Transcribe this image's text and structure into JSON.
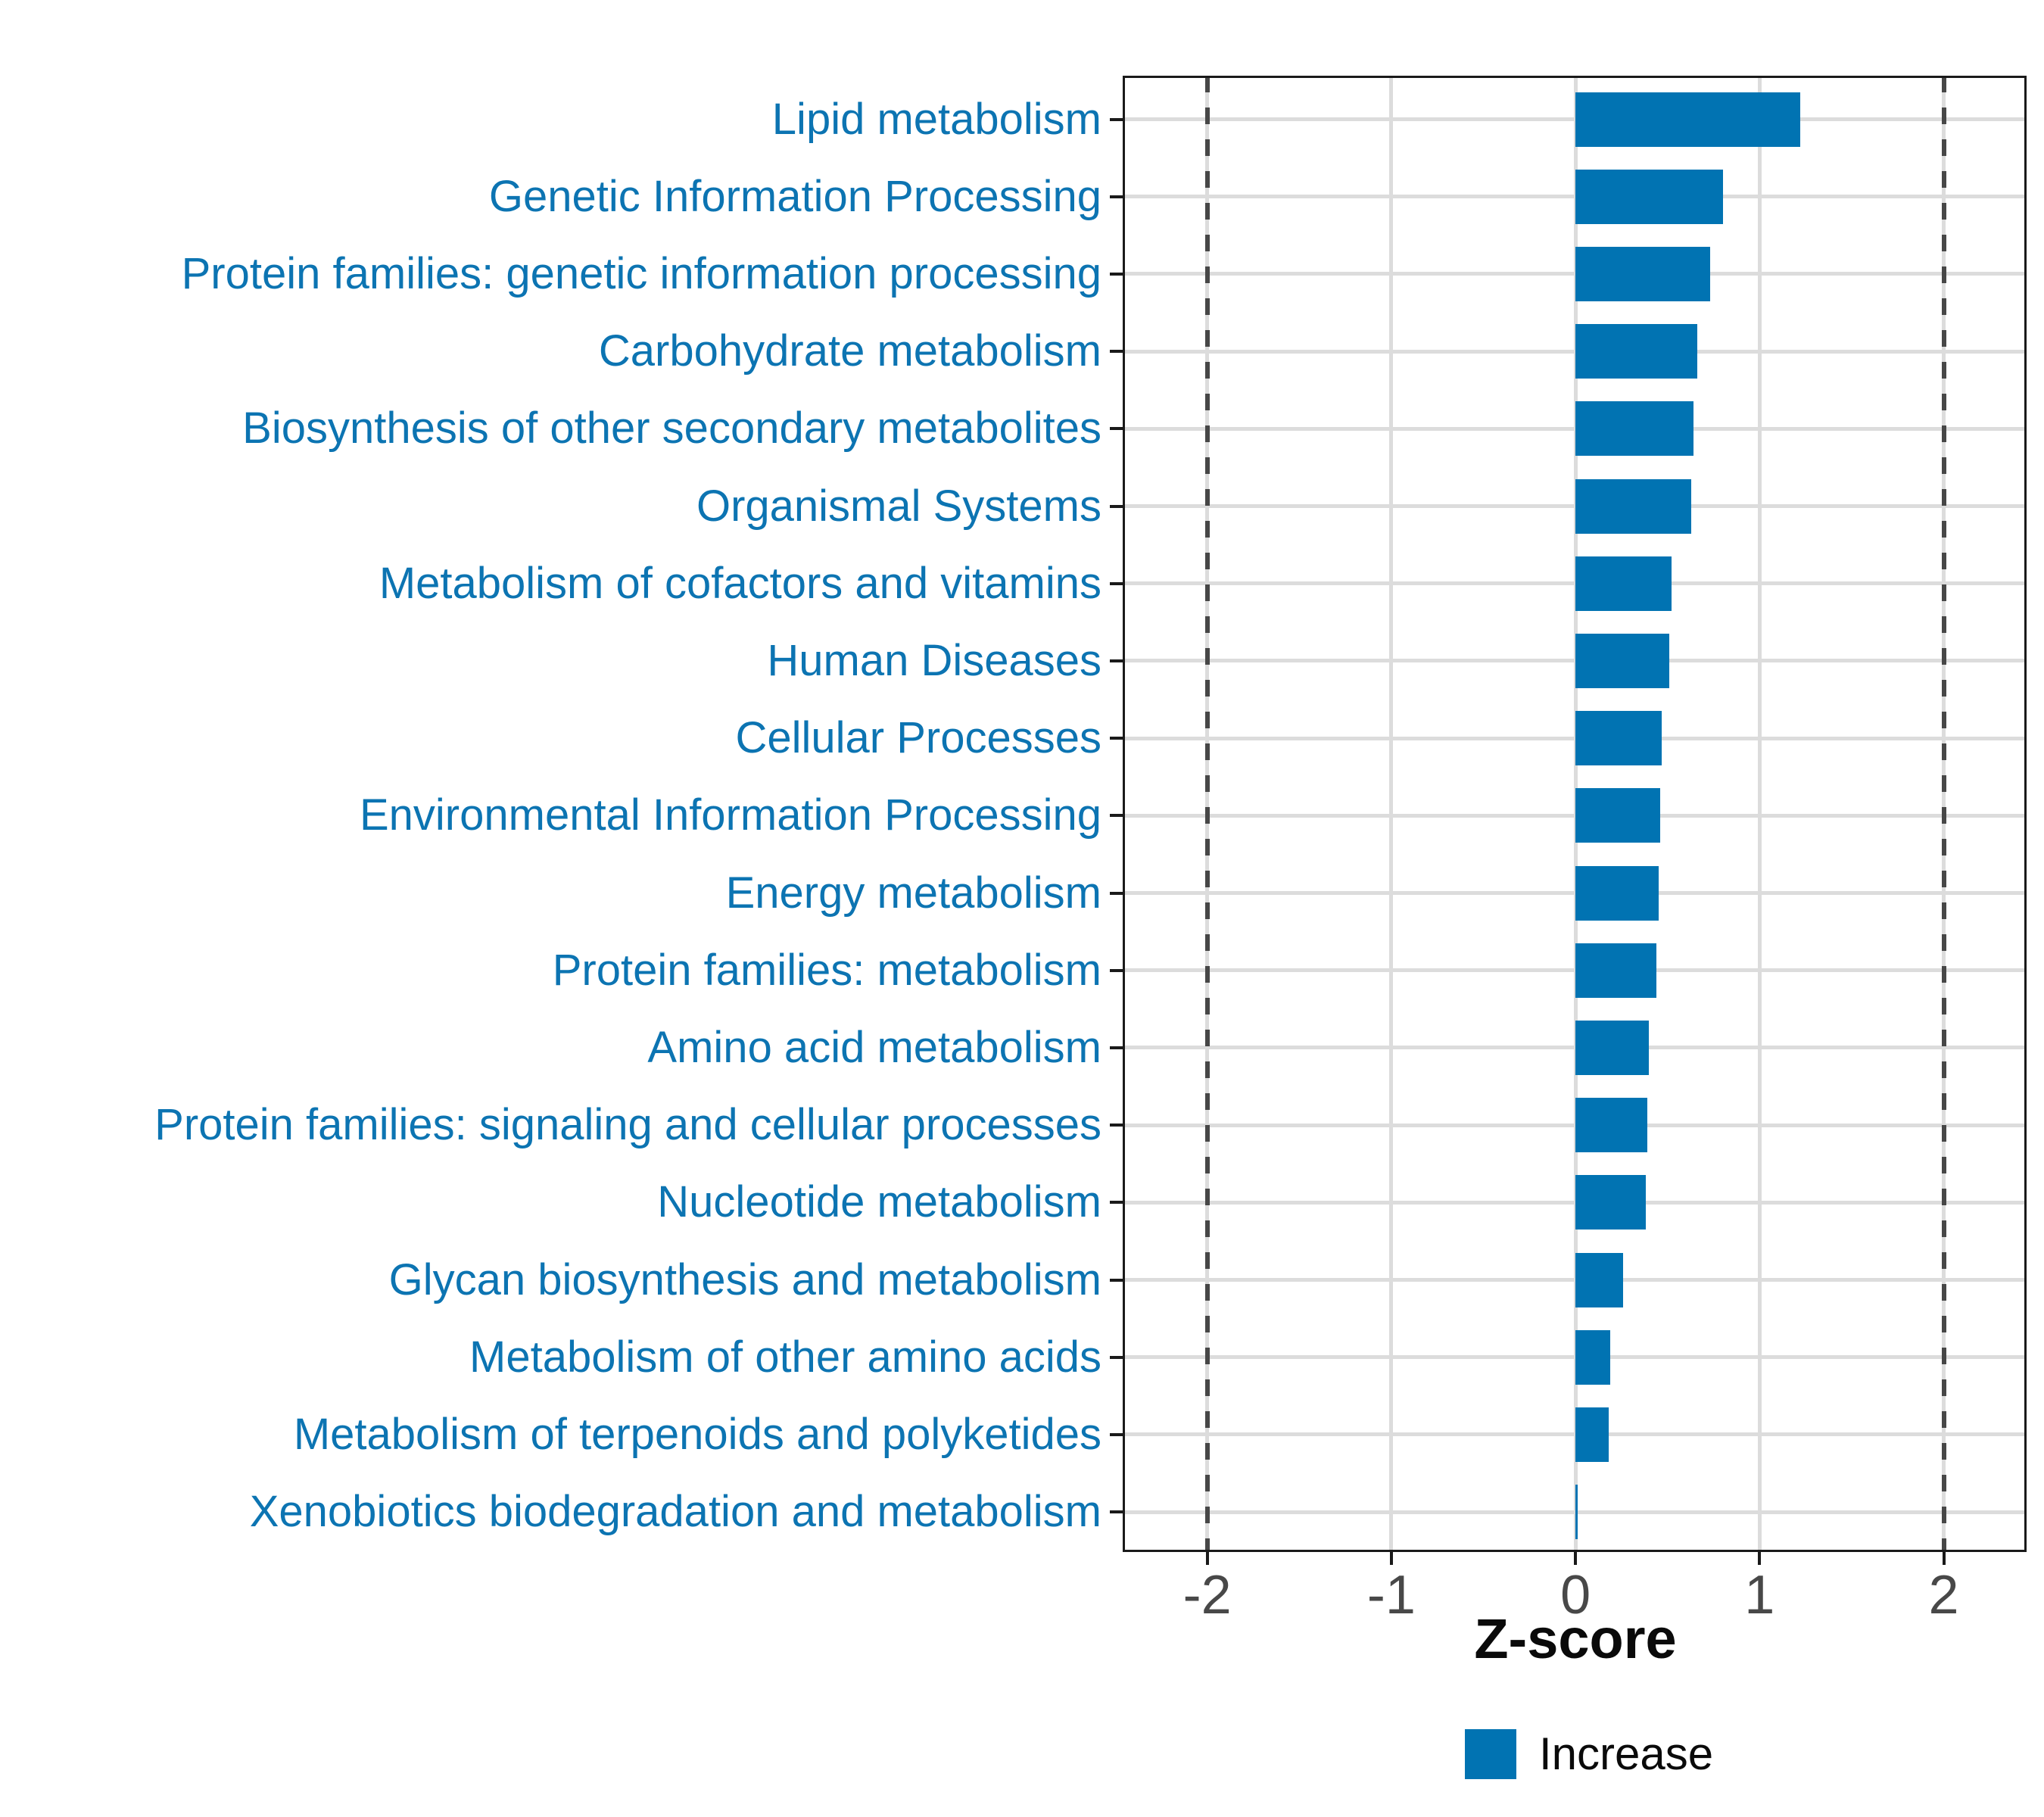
{
  "figure": {
    "background": "#FFFFFF",
    "bar_color": "#0173B2",
    "category_label_color": "#0C74B2",
    "tick_label_color": "#484848",
    "grid_color": "#DCDCDC",
    "dashed_line_color": "#474747",
    "panel_border_color": "#1A1A1A"
  },
  "chart_data": {
    "type": "bar",
    "orientation": "horizontal",
    "title": "",
    "xlabel": "Z-score",
    "ylabel": "",
    "xlim": [
      -2.46,
      2.45
    ],
    "x_ticks": [
      -2,
      -1,
      0,
      1,
      2
    ],
    "x_tick_labels": [
      "-2",
      "-1",
      "0",
      "1",
      "2"
    ],
    "grid": true,
    "reference_lines_dashed": [
      -2,
      2
    ],
    "series_name": "Increase",
    "categories": [
      "Lipid metabolism",
      "Genetic Information Processing",
      "Protein families: genetic information processing",
      "Carbohydrate metabolism",
      "Biosynthesis of other secondary metabolites",
      "Organismal Systems",
      "Metabolism of cofactors and vitamins",
      "Human Diseases",
      "Cellular Processes",
      "Environmental Information Processing",
      "Energy metabolism",
      "Protein families: metabolism",
      "Amino acid metabolism",
      "Protein families: signaling and cellular processes",
      "Nucleotide metabolism",
      "Glycan biosynthesis and metabolism",
      "Metabolism of other amino acids",
      "Metabolism of terpenoids and polyketides",
      "Xenobiotics biodegradation and metabolism"
    ],
    "values": [
      1.22,
      0.8,
      0.73,
      0.66,
      0.64,
      0.63,
      0.52,
      0.51,
      0.47,
      0.46,
      0.45,
      0.44,
      0.4,
      0.39,
      0.38,
      0.26,
      0.19,
      0.18,
      0.01
    ],
    "legend": {
      "position": "bottom",
      "entries": [
        {
          "label": "Increase",
          "color": "#0173B2"
        }
      ]
    }
  }
}
